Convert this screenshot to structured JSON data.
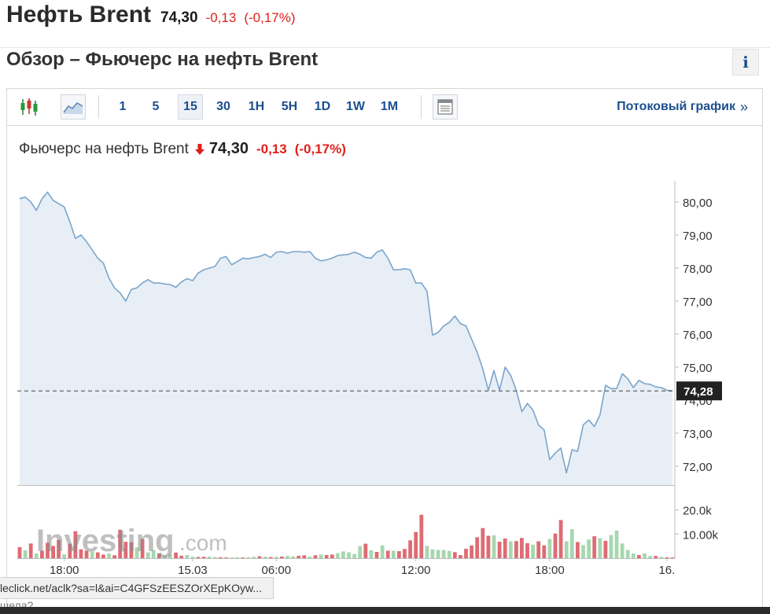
{
  "header": {
    "name": "Нефть Brent",
    "price": "74,30",
    "change": "-0,13",
    "change_pct": "(-0,17%)"
  },
  "section_title": "Обзор – Фьючерс на нефть Brent",
  "info_label": "i",
  "toolbar": {
    "chart_type_icon": "candlestick-icon",
    "area_icon": "area-chart-icon",
    "intervals": [
      "1",
      "5",
      "15",
      "30",
      "1H",
      "5H",
      "1D",
      "1W",
      "1M"
    ],
    "active_interval": "15",
    "table_icon": "table-view-icon",
    "streaming_label": "Потоковый график",
    "streaming_arrow": "»"
  },
  "chart_header": {
    "name": "Фьючерс на нефть Brent",
    "direction_icon": "down-arrow-icon",
    "price": "74,30",
    "change": "-0,13",
    "change_pct": "(-0,17%)"
  },
  "colors": {
    "line": "#7aa5cc",
    "area_fill": "#e7eef5",
    "up": "#a7d7b0",
    "down": "#de6c73",
    "negative_text": "#e0201b",
    "link": "#1c4f8e"
  },
  "chart_data": [
    {
      "type": "area",
      "title": "",
      "ylim": [
        71.5,
        80.6
      ],
      "y_ticks": [
        "80,00",
        "79,00",
        "78,00",
        "77,00",
        "76,00",
        "75,00",
        "74,00",
        "73,00",
        "72,00"
      ],
      "x_ticks": [
        "18:00",
        "15.03",
        "06:00",
        "12:00",
        "18:00",
        "16."
      ],
      "current_label": "74,28",
      "current_value": 74.28,
      "series": [
        {
          "values": [
            80.1,
            80.15,
            80.0,
            79.75,
            80.1,
            80.3,
            80.05,
            79.95,
            79.85,
            79.4,
            78.9,
            79.0,
            78.8,
            78.55,
            78.3,
            78.15,
            77.7,
            77.4,
            77.25,
            77.0,
            77.35,
            77.4,
            77.55,
            77.65,
            77.55,
            77.55,
            77.52,
            77.5,
            77.42,
            77.58,
            77.68,
            77.62,
            77.85,
            77.95,
            78.0,
            78.05,
            78.3,
            78.35,
            78.1,
            78.2,
            78.3,
            78.28,
            78.32,
            78.35,
            78.42,
            78.32,
            78.48,
            78.5,
            78.45,
            78.5,
            78.5,
            78.48,
            78.5,
            78.3,
            78.22,
            78.25,
            78.3,
            78.38,
            78.4,
            78.42,
            78.48,
            78.42,
            78.32,
            78.3,
            78.48,
            78.55,
            78.3,
            77.95,
            77.95,
            77.98,
            77.95,
            77.55,
            77.55,
            77.3,
            75.97,
            76.05,
            76.25,
            76.35,
            76.55,
            76.32,
            76.25,
            75.85,
            75.45,
            74.95,
            74.3,
            74.9,
            74.3,
            75.0,
            74.75,
            74.3,
            73.65,
            73.9,
            73.7,
            73.25,
            73.1,
            72.2,
            72.4,
            72.55,
            71.8,
            72.5,
            72.45,
            73.25,
            73.4,
            73.2,
            73.55,
            74.45,
            74.35,
            74.35,
            74.8,
            74.65,
            74.38,
            74.6,
            74.5,
            74.48,
            74.4,
            74.38,
            74.3,
            74.28
          ]
        }
      ]
    },
    {
      "type": "bar",
      "title": "",
      "ylim": [
        0,
        30000
      ],
      "y_ticks": [
        "20.0k",
        "10.00k"
      ],
      "series": [
        {
          "name": "volume",
          "values": [
            4600,
            3300,
            6100,
            2000,
            3100,
            6400,
            5100,
            7600,
            1600,
            6000,
            11200,
            3700,
            3100,
            2800,
            2400,
            1500,
            1900,
            1200,
            11800,
            6800,
            6600,
            4500,
            8000,
            2400,
            3400,
            1900,
            1000,
            1500,
            2300,
            1000,
            1300,
            700,
            500,
            600,
            700,
            500,
            400,
            300,
            300,
            400,
            300,
            400,
            600,
            800,
            700,
            500,
            600,
            700,
            900,
            700,
            1000,
            1200,
            700,
            1200,
            1500,
            1300,
            1500,
            2100,
            2800,
            2400,
            1700,
            5000,
            6000,
            3300,
            2600,
            5300,
            3100,
            3100,
            2900,
            3800,
            7400,
            10900,
            18000,
            5100,
            3700,
            3400,
            3400,
            3000,
            2500,
            1300,
            3900,
            5300,
            8700,
            12500,
            9300,
            9500,
            6800,
            8200,
            7000,
            7100,
            8400,
            6200,
            5600,
            7000,
            5300,
            8000,
            10200,
            15800,
            7000,
            12000,
            6700,
            5400,
            7800,
            9100,
            8300,
            7200,
            9600,
            11500,
            6100,
            3400,
            2000,
            1300,
            2000,
            900,
            900,
            600,
            400,
            300
          ],
          "colors": [
            "down",
            "up",
            "down",
            "up",
            "down",
            "down",
            "down",
            "down",
            "up",
            "down",
            "down",
            "down",
            "down",
            "up",
            "down",
            "down",
            "up",
            "down",
            "down",
            "down",
            "down",
            "up",
            "down",
            "up",
            "up",
            "down",
            "up",
            "up",
            "down",
            "down",
            "up",
            "up",
            "down",
            "down",
            "up",
            "up",
            "down",
            "down",
            "up",
            "up",
            "down",
            "up",
            "up",
            "down",
            "up",
            "down",
            "up",
            "down",
            "up",
            "up",
            "down",
            "down",
            "up",
            "down",
            "up",
            "down",
            "down",
            "up",
            "up",
            "up",
            "up",
            "up",
            "down",
            "up",
            "down",
            "up",
            "down",
            "up",
            "down",
            "down",
            "down",
            "down",
            "down",
            "up",
            "up",
            "up",
            "up",
            "up",
            "down",
            "down",
            "down",
            "down",
            "down",
            "down",
            "down",
            "up",
            "down",
            "down",
            "up",
            "down",
            "down",
            "down",
            "up",
            "down",
            "down",
            "up",
            "down",
            "down",
            "up",
            "up",
            "down",
            "up",
            "up",
            "down",
            "up",
            "down",
            "up",
            "up",
            "up",
            "up",
            "up",
            "down",
            "up",
            "up",
            "down",
            "up",
            "down",
            "down"
          ]
        }
      ]
    }
  ],
  "watermark": {
    "brand": "Investing",
    "suffix": ".com"
  },
  "status_tip": "leclick.net/aclk?sa=l&ai=C4GFSzEESZOrXEpKOyw...",
  "under_text": "шела?"
}
